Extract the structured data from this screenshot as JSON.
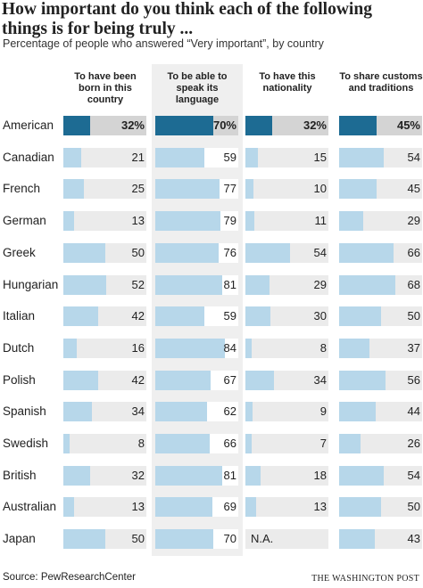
{
  "header": {
    "title": "How important do you think each of the following things is for being truly ...",
    "subtitle": "Percentage of people who answered “Very important”, by country"
  },
  "footer": {
    "source": "Source: PewResearchCenter",
    "credit": "THE WASHINGTON POST"
  },
  "colors": {
    "highlight_bar": "#1d6b93",
    "normal_bar": "#b7d7ea",
    "highlight_track": "#d4d4d4",
    "track": "#ebebeb",
    "highlight_panel": "#efefef"
  },
  "chart_data": {
    "type": "bar",
    "orientation": "horizontal small multiples",
    "highlighted_column": 1,
    "highlighted_row": "American",
    "value_format_highlighted": "{v}%",
    "xlim": [
      0,
      100
    ],
    "categories": [
      "American",
      "Canadian",
      "French",
      "German",
      "Greek",
      "Hungarian",
      "Italian",
      "Dutch",
      "Polish",
      "Spanish",
      "Swedish",
      "British",
      "Australian",
      "Japan"
    ],
    "series": [
      {
        "name": "To have been born in this country",
        "values": [
          32,
          21,
          25,
          13,
          50,
          52,
          42,
          16,
          42,
          34,
          8,
          32,
          13,
          50
        ]
      },
      {
        "name": "To be able to speak its language",
        "values": [
          70,
          59,
          77,
          79,
          76,
          81,
          59,
          84,
          67,
          62,
          66,
          81,
          69,
          70
        ]
      },
      {
        "name": "To have this nationality",
        "values": [
          32,
          15,
          10,
          11,
          54,
          29,
          30,
          8,
          34,
          9,
          7,
          18,
          13,
          null
        ]
      },
      {
        "name": "To share customs and traditions",
        "values": [
          45,
          54,
          45,
          29,
          66,
          68,
          50,
          37,
          56,
          44,
          26,
          54,
          50,
          43
        ]
      }
    ],
    "missing_label": "N.A."
  }
}
